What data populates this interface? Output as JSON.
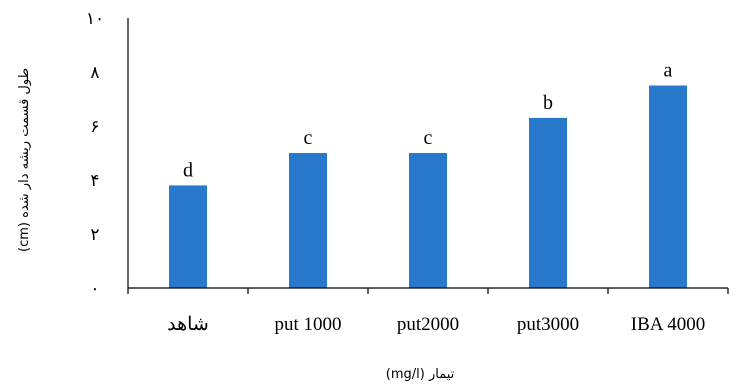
{
  "chart_data": {
    "type": "bar",
    "categories": [
      "شاهد",
      "put 1000",
      "put2000",
      "put3000",
      "IBA 4000"
    ],
    "values": [
      3.8,
      5.0,
      5.0,
      6.3,
      7.5
    ],
    "significance_letters": [
      "d",
      "c",
      "c",
      "b",
      "a"
    ],
    "xlabel": "تیمار (mg/l)",
    "ylabel": "طول قسمت ریشه دار شده (cm)",
    "ylim": [
      0,
      10
    ],
    "yticks": [
      0,
      2,
      4,
      6,
      8,
      10
    ],
    "ytick_labels": [
      "۰",
      "۲",
      "۴",
      "۶",
      "۸",
      "۱۰"
    ],
    "grid": false,
    "legend": "none",
    "bar_color": "#2878CC"
  }
}
